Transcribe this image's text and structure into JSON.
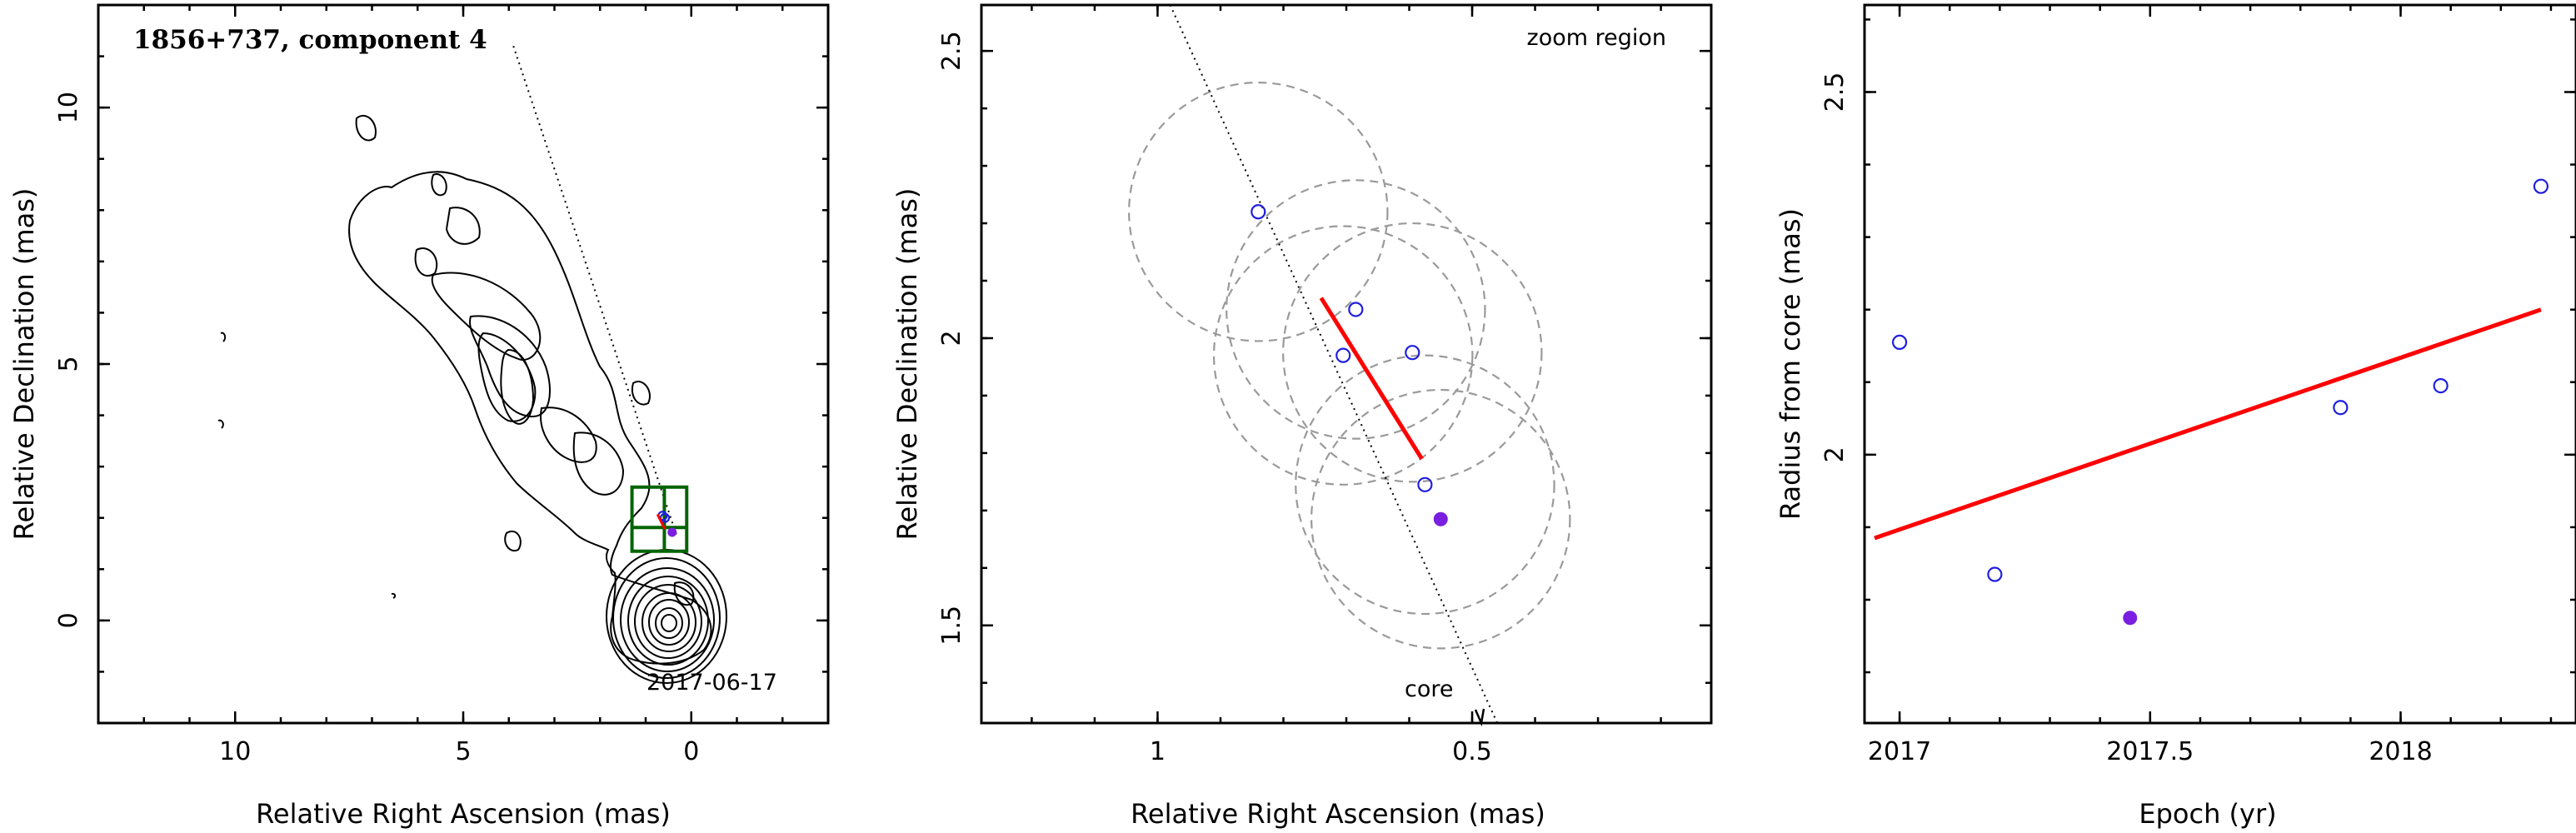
{
  "chart_data": [
    {
      "type": "contour",
      "title": "1856+737, component 4",
      "date_label": "2017-06-17",
      "xlabel": "Relative Right Ascension (mas)",
      "ylabel": "Relative Declination (mas)",
      "xlim": [
        13,
        -3
      ],
      "ylim": [
        -2,
        12
      ],
      "xticks": [
        10,
        5,
        0
      ],
      "xtick_labels": [
        "10",
        "5",
        "0"
      ],
      "yticks": [
        0,
        5,
        10
      ],
      "ytick_labels": [
        "0",
        "5",
        "10"
      ],
      "jet_direction_line": {
        "from": [
          3.9,
          11.2
        ],
        "to": [
          0.3,
          1.6
        ]
      },
      "zoom_box": {
        "x": [
          1.3,
          0.1
        ],
        "y": [
          1.35,
          2.6
        ]
      },
      "component_positions": [
        [
          0.58,
          2.0
        ],
        [
          0.63,
          2.04
        ],
        [
          0.42,
          1.72
        ]
      ],
      "fit_segment": {
        "from": [
          0.74,
          2.07
        ],
        "to": [
          0.58,
          1.78
        ]
      }
    },
    {
      "type": "scatter",
      "title": "",
      "annotations": [
        "zoom region",
        "core"
      ],
      "xlabel": "Relative Right Ascension (mas)",
      "ylabel": "Relative Declination (mas)",
      "xlim": [
        1.28,
        0.12
      ],
      "ylim": [
        1.33,
        2.58
      ],
      "xticks": [
        1,
        0.5
      ],
      "xtick_labels": [
        "1",
        "0.5"
      ],
      "yticks": [
        1.5,
        2,
        2.5
      ],
      "ytick_labels": [
        "1.5",
        "2",
        "2.5"
      ],
      "points_open": [
        {
          "x": 0.84,
          "y": 2.22
        },
        {
          "x": 0.685,
          "y": 2.05
        },
        {
          "x": 0.705,
          "y": 1.97
        },
        {
          "x": 0.595,
          "y": 1.975
        },
        {
          "x": 0.575,
          "y": 1.745
        }
      ],
      "points_filled": [
        {
          "x": 0.55,
          "y": 1.685
        }
      ],
      "beam_circles_radius": 0.225,
      "beam_circle_centers": [
        {
          "x": 0.84,
          "y": 2.22
        },
        {
          "x": 0.685,
          "y": 2.05
        },
        {
          "x": 0.705,
          "y": 1.97
        },
        {
          "x": 0.595,
          "y": 1.975
        },
        {
          "x": 0.575,
          "y": 1.745
        },
        {
          "x": 0.55,
          "y": 1.685
        }
      ],
      "fit_segment": {
        "from": [
          0.74,
          2.07
        ],
        "to": [
          0.58,
          1.79
        ]
      },
      "jet_direction_line": {
        "from": [
          0.98,
          2.58
        ],
        "to": [
          0.46,
          1.33
        ]
      }
    },
    {
      "type": "scatter",
      "title": "",
      "xlabel": "Epoch (yr)",
      "ylabel": "Radius from core (mas)",
      "xlim": [
        2016.93,
        2018.35
      ],
      "ylim": [
        1.63,
        2.62
      ],
      "xticks": [
        2017,
        2017.5,
        2018
      ],
      "xtick_labels": [
        "2017",
        "2017.5",
        "2018"
      ],
      "yticks": [
        2,
        2.5
      ],
      "ytick_labels": [
        "2",
        "2.5"
      ],
      "points_open": [
        {
          "x": 2017.0,
          "y": 2.155
        },
        {
          "x": 2017.19,
          "y": 1.835
        },
        {
          "x": 2017.88,
          "y": 2.065
        },
        {
          "x": 2018.08,
          "y": 2.095
        },
        {
          "x": 2018.28,
          "y": 2.37
        }
      ],
      "points_filled": [
        {
          "x": 2017.46,
          "y": 1.775
        }
      ],
      "fit_line": {
        "from": [
          2016.95,
          1.885
        ],
        "to": [
          2018.28,
          2.2
        ]
      }
    }
  ],
  "colors": {
    "open_points": "#1f1fe0",
    "filled_point": "#7a1fe0",
    "fit_line": "#ff0000",
    "zoom_box": "#006400",
    "beam_circles": "#9a9a9a"
  }
}
